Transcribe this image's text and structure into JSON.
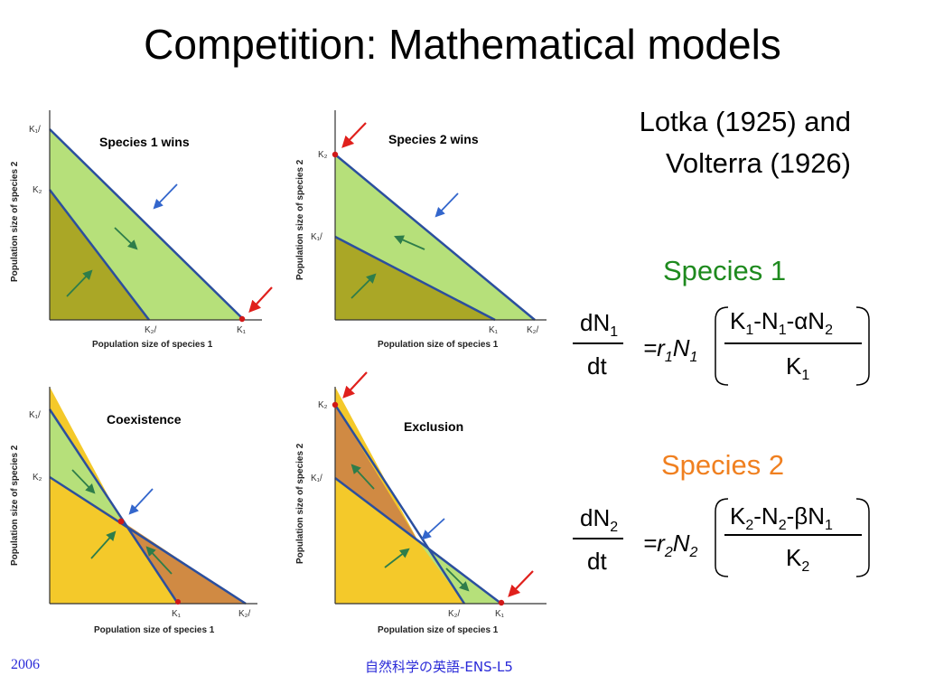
{
  "title": "Competition: Mathematical models",
  "citation": {
    "line1": "Lotka (1925) and",
    "line2": "Volterra (1926)"
  },
  "axis": {
    "ylabel": "Population size of species 2",
    "xlabel": "Population size of species 1",
    "k1_over": "K₁/",
    "k2_over": "K₂/",
    "k1": "K₁",
    "k2": "K₂"
  },
  "panels": [
    {
      "id": "species1wins",
      "label": "Species 1 wins"
    },
    {
      "id": "species2wins",
      "label": "Species 2 wins"
    },
    {
      "id": "coexistence",
      "label": "Coexistence"
    },
    {
      "id": "exclusion",
      "label": "Exclusion"
    }
  ],
  "species1": {
    "label": "Species 1",
    "color": "#1e8a1e",
    "lhs_num": "dN",
    "lhs_num_sub": "1",
    "lhs_den": "dt",
    "rate": "=r",
    "rate_sub": "1",
    "pop": "N",
    "pop_sub": "1",
    "num_a": "K",
    "num_a_sub": "1",
    "num_b": "-N",
    "num_b_sub": "1",
    "num_c": "-",
    "coef": "α",
    "num_d": "N",
    "num_d_sub": "2",
    "den": "K",
    "den_sub": "1"
  },
  "species2": {
    "label": "Species 2",
    "color": "#f08020",
    "lhs_num": "dN",
    "lhs_num_sub": "2",
    "lhs_den": "dt",
    "rate": "=r",
    "rate_sub": "2",
    "pop": "N",
    "pop_sub": "2",
    "num_a": "K",
    "num_a_sub": "2",
    "num_b": "-N",
    "num_b_sub": "2",
    "num_c": "-",
    "coef": "β",
    "num_d": "N",
    "num_d_sub": "1",
    "den": "K",
    "den_sub": "2"
  },
  "footer": {
    "year": "2006",
    "course": "自然科学の英語-ENS-L5"
  },
  "colors": {
    "light_green": "#b6e07a",
    "olive": "#aaa726",
    "yellow": "#f4c92a",
    "brown": "#d08a43",
    "line_blue": "#2b4f9e",
    "arrow_blue": "#3366cc",
    "arrow_red": "#e0201c",
    "arrow_green": "#2e7d4a"
  }
}
